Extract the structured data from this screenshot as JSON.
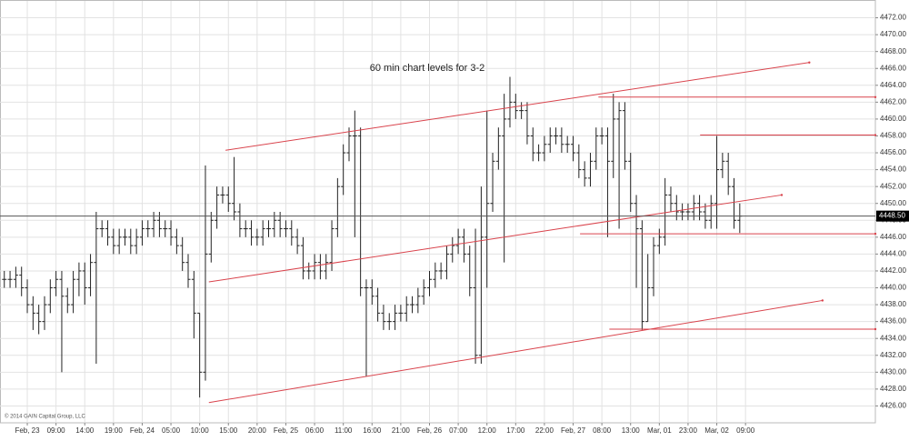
{
  "chart_data": {
    "type": "ohlc",
    "annotation": "60 min chart levels for 3-2",
    "copyright": "© 2014 GAIN Capital Group, LLC",
    "color": "#222222",
    "line_color": "#d9434c",
    "grid": true,
    "xlim": [
      -4.75,
      147.6
    ],
    "ylim": [
      4424,
      4474
    ],
    "xticks": [
      {
        "value": 0,
        "label": "Feb, 23"
      },
      {
        "value": 5,
        "label": "09:00"
      },
      {
        "value": 10,
        "label": "14:00"
      },
      {
        "value": 15,
        "label": "19:00"
      },
      {
        "value": 20,
        "label": "Feb, 24"
      },
      {
        "value": 25,
        "label": "05:00"
      },
      {
        "value": 30,
        "label": "10:00"
      },
      {
        "value": 35,
        "label": "15:00"
      },
      {
        "value": 40,
        "label": "20:00"
      },
      {
        "value": 45,
        "label": "Feb, 25"
      },
      {
        "value": 50,
        "label": "06:00"
      },
      {
        "value": 55,
        "label": "11:00"
      },
      {
        "value": 60,
        "label": "16:00"
      },
      {
        "value": 65,
        "label": "21:00"
      },
      {
        "value": 70,
        "label": "Feb, 26"
      },
      {
        "value": 75,
        "label": "07:00"
      },
      {
        "value": 80,
        "label": "12:00"
      },
      {
        "value": 85,
        "label": "17:00"
      },
      {
        "value": 90,
        "label": "22:00"
      },
      {
        "value": 95,
        "label": "Feb, 27"
      },
      {
        "value": 100,
        "label": "08:00"
      },
      {
        "value": 105,
        "label": "13:00"
      },
      {
        "value": 110,
        "label": "Mar, 01"
      },
      {
        "value": 115,
        "label": "23:00"
      },
      {
        "value": 120,
        "label": "Mar, 02"
      },
      {
        "value": 125,
        "label": "09:00"
      }
    ],
    "yticks": [
      {
        "value": 4426,
        "label": "4426.00"
      },
      {
        "value": 4428,
        "label": "4428.00"
      },
      {
        "value": 4430,
        "label": "4430.00"
      },
      {
        "value": 4432,
        "label": "4432.00"
      },
      {
        "value": 4434,
        "label": "4434.00"
      },
      {
        "value": 4436,
        "label": "4436.00"
      },
      {
        "value": 4438,
        "label": "4438.00"
      },
      {
        "value": 4440,
        "label": "4440.00"
      },
      {
        "value": 4442,
        "label": "4442.00"
      },
      {
        "value": 4444,
        "label": "4444.00"
      },
      {
        "value": 4446,
        "label": "4446.00"
      },
      {
        "value": 4448,
        "label": "4448.00"
      },
      {
        "value": 4450,
        "label": "4450.00"
      },
      {
        "value": 4452,
        "label": "4452.00"
      },
      {
        "value": 4454,
        "label": "4454.00"
      },
      {
        "value": 4456,
        "label": "4456.00"
      },
      {
        "value": 4458,
        "label": "4458.00"
      },
      {
        "value": 4460,
        "label": "4460.00"
      },
      {
        "value": 4462,
        "label": "4462.00"
      },
      {
        "value": 4464,
        "label": "4464.00"
      },
      {
        "value": 4466,
        "label": "4466.00"
      },
      {
        "value": 4468,
        "label": "4468.00"
      },
      {
        "value": 4470,
        "label": "4470.00"
      },
      {
        "value": 4472,
        "label": "4472.00"
      }
    ],
    "last_price": {
      "value": 4448.5,
      "label": "4448.50"
    },
    "x": [
      -4,
      -3,
      -2,
      -1,
      0,
      1,
      2,
      3,
      4,
      5,
      6,
      7,
      8,
      9,
      10,
      11,
      12,
      13,
      14,
      15,
      16,
      17,
      18,
      19,
      20,
      21,
      22,
      23,
      24,
      25,
      26,
      27,
      28,
      29,
      30,
      31,
      32,
      33,
      34,
      35,
      36,
      37,
      38,
      39,
      40,
      41,
      42,
      43,
      44,
      45,
      46,
      47,
      48,
      49,
      50,
      51,
      52,
      53,
      54,
      55,
      56,
      57,
      58,
      59,
      60,
      61,
      62,
      63,
      64,
      65,
      66,
      67,
      68,
      69,
      70,
      71,
      72,
      73,
      74,
      75,
      76,
      77,
      78,
      79,
      80,
      81,
      82,
      83,
      84,
      85,
      86,
      87,
      88,
      89,
      90,
      91,
      92,
      93,
      94,
      95,
      96,
      97,
      98,
      99,
      100,
      101,
      102,
      103,
      104,
      105,
      106,
      107,
      108,
      109,
      110,
      111,
      112,
      113,
      114,
      115,
      116,
      117,
      118,
      119,
      120,
      121,
      122,
      123,
      124
    ],
    "open": [
      4441,
      4441,
      4441,
      4441.5,
      4440,
      4438,
      4437,
      4436,
      4438,
      4440,
      4441,
      4439,
      4438,
      4441,
      4442,
      4440,
      4443,
      4447,
      4447,
      4446,
      4445,
      4446,
      4446,
      4445,
      4446,
      4447,
      4447,
      4448,
      4447,
      4447,
      4446,
      4445,
      4443,
      4441,
      4437,
      4430,
      4444,
      4448,
      4451,
      4451,
      4450,
      4449,
      4447,
      4447,
      4446,
      4446,
      4447,
      4447,
      4448,
      4447,
      4447,
      4446,
      4445,
      4442,
      4442,
      4443,
      4442,
      4443,
      4447,
      4452,
      4456,
      4458,
      4458,
      4440,
      4440,
      4439,
      4437,
      4436,
      4436,
      4437,
      4437,
      4438,
      4438,
      4439,
      4440,
      4441,
      4442,
      4442,
      4444,
      4445,
      4446,
      4444,
      4440,
      4432,
      4446,
      4450,
      4455,
      4458,
      4460,
      4462,
      4461,
      4461,
      4458,
      4456,
      4456,
      4457,
      4458,
      4458,
      4457,
      4457,
      4456,
      4454,
      4453,
      4455,
      4458,
      4458,
      4455,
      4460,
      4461,
      4455,
      4450,
      4447,
      4436,
      4440,
      4445,
      4446,
      4451,
      4450,
      4449,
      4449,
      4449,
      4450,
      4449,
      4448,
      4450,
      4454,
      4455,
      4452,
      4448
    ],
    "high": [
      4442,
      4442,
      4442.5,
      4442.5,
      4441,
      4439,
      4438,
      4439,
      4441,
      4442,
      4442,
      4440,
      4442,
      4443,
      4443,
      4444,
      4449,
      4448,
      4448,
      4447,
      4447,
      4447,
      4447,
      4447,
      4448,
      4448,
      4449,
      4449,
      4448,
      4448,
      4447,
      4446,
      4444,
      4442,
      4437,
      4454.5,
      4449,
      4452,
      4452,
      4452,
      4455.5,
      4450,
      4448,
      4448,
      4447,
      4448,
      4448,
      4449,
      4449,
      4448,
      4448,
      4447,
      4446,
      4443,
      4444,
      4444,
      4444,
      4448,
      4453,
      4457,
      4459,
      4461,
      4459,
      4441,
      4441,
      4440,
      4438,
      4437,
      4438,
      4438,
      4439,
      4439,
      4440,
      4441,
      4442,
      4443,
      4443,
      4445,
      4446,
      4447,
      4447,
      4445,
      4447,
      4452,
      4461,
      4456,
      4459,
      4463,
      4465,
      4463,
      4462,
      4462,
      4459,
      4457,
      4458,
      4459,
      4459,
      4459,
      4458,
      4458,
      4457,
      4455,
      4456,
      4459,
      4459,
      4459,
      4463,
      4462,
      4462,
      4456,
      4451,
      4448,
      4444,
      4446,
      4447,
      4453,
      4452,
      4451,
      4450,
      4450,
      4451,
      4451,
      4450,
      4451,
      4458,
      4456,
      4456,
      4453,
      4450
    ],
    "low": [
      4440,
      4440,
      4440,
      4439,
      4437,
      4435,
      4434.5,
      4435,
      4437,
      4439,
      4430,
      4437,
      4437,
      4439,
      4438,
      4439,
      4431,
      4446,
      4445,
      4444,
      4444,
      4445,
      4444,
      4444,
      4445,
      4446,
      4446,
      4446,
      4446,
      4445,
      4444,
      4442,
      4440,
      4434,
      4427,
      4429,
      4443,
      4447,
      4450,
      4449,
      4448,
      4446,
      4446,
      4445,
      4445,
      4445,
      4446,
      4446,
      4446,
      4446,
      4445,
      4444,
      4441,
      4441,
      4441,
      4441,
      4441,
      4442,
      4446,
      4451,
      4455,
      4446,
      4439,
      4429.5,
      4438,
      4436,
      4435,
      4435,
      4435,
      4436,
      4436,
      4437,
      4437,
      4438,
      4439,
      4440,
      4441,
      4441,
      4443,
      4444,
      4443,
      4439,
      4431,
      4431,
      4440,
      4449,
      4454,
      4443,
      4459,
      4460,
      4460,
      4457,
      4455,
      4455,
      4455,
      4456,
      4457,
      4456,
      4456,
      4455,
      4453,
      4452,
      4452,
      4454,
      4457,
      4446,
      4453,
      4447,
      4454,
      4449,
      4440,
      4435,
      4436,
      4439,
      4444,
      4445,
      4449,
      4448,
      4448,
      4448,
      4448,
      4448,
      4447,
      4447,
      4447,
      4453,
      4451,
      4447,
      4446.5
    ],
    "close": [
      4441,
      4441,
      4441.5,
      4440,
      4438,
      4437,
      4436,
      4438,
      4440,
      4441,
      4439,
      4438,
      4441,
      4442,
      4440,
      4443,
      4447,
      4447,
      4446,
      4445,
      4446,
      4446,
      4445,
      4446,
      4447,
      4447,
      4448,
      4447,
      4447,
      4446,
      4445,
      4443,
      4441,
      4437,
      4430,
      4444,
      4448,
      4451,
      4451,
      4450,
      4449,
      4447,
      4447,
      4446,
      4446,
      4447,
      4447,
      4448,
      4447,
      4447,
      4446,
      4445,
      4442,
      4442,
      4443,
      4442,
      4443,
      4447,
      4452,
      4456,
      4458,
      4458,
      4440,
      4440,
      4439,
      4437,
      4436,
      4436,
      4437,
      4437,
      4438,
      4438,
      4439,
      4440,
      4441,
      4442,
      4442,
      4444,
      4445,
      4446,
      4444,
      4440,
      4432,
      4446,
      4450,
      4455,
      4458,
      4460,
      4462,
      4461,
      4461,
      4458,
      4456,
      4456,
      4457,
      4458,
      4458,
      4457,
      4457,
      4456,
      4454,
      4453,
      4455,
      4458,
      4458,
      4455,
      4460,
      4461,
      4455,
      4450,
      4447,
      4436,
      4440,
      4445,
      4446,
      4451,
      4450,
      4449,
      4449,
      4449,
      4450,
      4449,
      4448,
      4450,
      4454,
      4455,
      4452,
      4448,
      4448.5
    ],
    "lines": [
      {
        "x": [
          34.5,
          136.1
        ],
        "y": [
          4456.3,
          4466.7
        ]
      },
      {
        "x": [
          31.6,
          131.3
        ],
        "y": [
          4440.7,
          4451.0
        ]
      },
      {
        "x": [
          31.6,
          138.4
        ],
        "y": [
          4426.4,
          4438.5
        ]
      },
      {
        "x": [
          99.4,
          147.6
        ],
        "y": [
          4462.6,
          4462.6
        ]
      },
      {
        "x": [
          117.1,
          147.6
        ],
        "y": [
          4458.1,
          4458.1
        ]
      },
      {
        "x": [
          96.2,
          147.6
        ],
        "y": [
          4446.4,
          4446.4
        ]
      },
      {
        "x": [
          101.3,
          147.6
        ],
        "y": [
          4435.1,
          4435.1
        ]
      }
    ]
  }
}
